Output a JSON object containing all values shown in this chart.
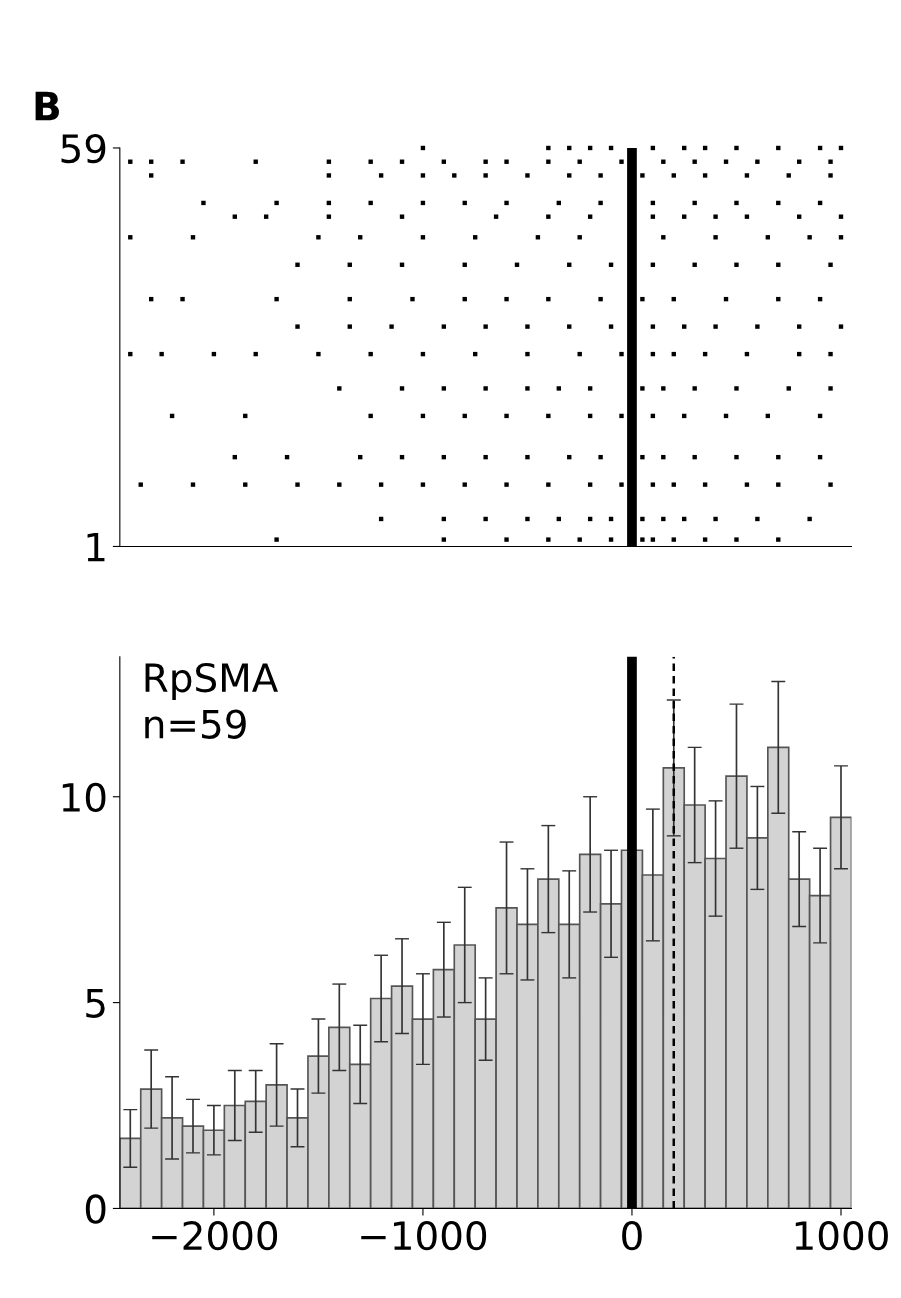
{
  "chart_data": [
    {
      "type": "scatter",
      "title": "B",
      "color": "#000000",
      "marker": "square",
      "xlim": [
        -2450,
        1050
      ],
      "ylim": [
        1,
        59
      ],
      "yticks": [
        1,
        59
      ],
      "tick_labels": "y",
      "ref_lines": [
        {
          "axis": "x",
          "value": 0,
          "color": "#000000",
          "line_style": "solid"
        }
      ],
      "x": [
        -1000,
        -400,
        -300,
        -200,
        -100,
        100,
        250,
        350,
        500,
        700,
        900,
        1000,
        -2400,
        -2300,
        -2150,
        -1800,
        -1450,
        -1250,
        -1100,
        -900,
        -700,
        -600,
        -400,
        -250,
        -50,
        150,
        300,
        450,
        600,
        800,
        950,
        -2300,
        -1450,
        -1200,
        -1000,
        -850,
        -700,
        -500,
        -300,
        -150,
        50,
        200,
        350,
        550,
        750,
        950,
        -2050,
        -1700,
        -1450,
        -1250,
        -1000,
        -800,
        -600,
        -350,
        -150,
        100,
        300,
        500,
        700,
        900,
        -1900,
        -1750,
        -1450,
        -1100,
        -650,
        -400,
        -200,
        100,
        250,
        400,
        550,
        800,
        1000,
        -2400,
        -2100,
        -1500,
        -1300,
        -1000,
        -750,
        -450,
        -250,
        150,
        400,
        650,
        850,
        1000,
        -1600,
        -1350,
        -1100,
        -800,
        -550,
        -300,
        -100,
        100,
        300,
        500,
        700,
        950,
        -2300,
        -2150,
        -1700,
        -1350,
        -1050,
        -800,
        -600,
        -400,
        -150,
        50,
        200,
        450,
        700,
        900,
        -1600,
        -1350,
        -1150,
        -900,
        -700,
        -500,
        -300,
        -100,
        100,
        250,
        400,
        600,
        800,
        1000,
        -2400,
        -2250,
        -2000,
        -1800,
        -1500,
        -1250,
        -1000,
        -750,
        -500,
        -250,
        -50,
        100,
        200,
        350,
        550,
        800,
        950,
        -1400,
        -1100,
        -900,
        -700,
        -500,
        -350,
        -200,
        50,
        150,
        300,
        500,
        750,
        950,
        -2200,
        -1850,
        -1250,
        -1000,
        -800,
        -600,
        -400,
        -200,
        -50,
        100,
        250,
        450,
        650,
        900,
        -1900,
        -1650,
        -1300,
        -1100,
        -900,
        -700,
        -500,
        -300,
        -150,
        50,
        150,
        300,
        500,
        700,
        900,
        -2350,
        -2100,
        -1850,
        -1600,
        -1400,
        -1200,
        -1000,
        -800,
        -600,
        -400,
        -200,
        -50,
        100,
        200,
        350,
        550,
        700,
        950,
        -1200,
        -900,
        -700,
        -500,
        -350,
        -200,
        -100,
        50,
        150,
        250,
        400,
        600,
        850,
        -1700,
        -900,
        -600,
        -400,
        -250,
        -100,
        50,
        100,
        200,
        350,
        500,
        700
      ],
      "values": [
        59,
        59,
        59,
        59,
        59,
        59,
        59,
        59,
        59,
        59,
        59,
        59,
        57,
        57,
        57,
        57,
        57,
        57,
        57,
        57,
        57,
        57,
        57,
        57,
        57,
        57,
        57,
        57,
        57,
        57,
        57,
        55,
        55,
        55,
        55,
        55,
        55,
        55,
        55,
        55,
        55,
        55,
        55,
        55,
        55,
        55,
        51,
        51,
        51,
        51,
        51,
        51,
        51,
        51,
        51,
        51,
        51,
        51,
        51,
        51,
        49,
        49,
        49,
        49,
        49,
        49,
        49,
        49,
        49,
        49,
        49,
        49,
        49,
        46,
        46,
        46,
        46,
        46,
        46,
        46,
        46,
        46,
        46,
        46,
        46,
        46,
        42,
        42,
        42,
        42,
        42,
        42,
        42,
        42,
        42,
        42,
        42,
        42,
        37,
        37,
        37,
        37,
        37,
        37,
        37,
        37,
        37,
        37,
        37,
        37,
        37,
        37,
        33,
        33,
        33,
        33,
        33,
        33,
        33,
        33,
        33,
        33,
        33,
        33,
        33,
        33,
        29,
        29,
        29,
        29,
        29,
        29,
        29,
        29,
        29,
        29,
        29,
        29,
        29,
        29,
        29,
        29,
        29,
        24,
        24,
        24,
        24,
        24,
        24,
        24,
        24,
        24,
        24,
        24,
        24,
        24,
        20,
        20,
        20,
        20,
        20,
        20,
        20,
        20,
        20,
        20,
        20,
        20,
        20,
        20,
        14,
        14,
        14,
        14,
        14,
        14,
        14,
        14,
        14,
        14,
        14,
        14,
        14,
        14,
        14,
        10,
        10,
        10,
        10,
        10,
        10,
        10,
        10,
        10,
        10,
        10,
        10,
        10,
        10,
        10,
        10,
        10,
        10,
        5,
        5,
        5,
        5,
        5,
        5,
        5,
        5,
        5,
        5,
        5,
        5,
        5,
        2,
        2,
        2,
        2,
        2,
        2,
        2,
        2,
        2,
        2,
        2,
        2
      ]
    },
    {
      "type": "bar",
      "color": "#d3d3d3",
      "xlim": [
        -2450,
        1050
      ],
      "ylim": [
        0,
        13.4
      ],
      "yticks": [
        0,
        5,
        10
      ],
      "xticks": [
        {
          "value": -2000,
          "label": "−2000"
        },
        {
          "value": -1000,
          "label": "−1000"
        },
        0,
        1000
      ],
      "annotations": [
        "RpSMA\nn=59"
      ],
      "ref_lines": [
        {
          "axis": "x",
          "value": 0,
          "color": "#000000",
          "line_style": "solid"
        },
        {
          "axis": "x",
          "value": 200,
          "color": "#000000",
          "line_style": "dashed"
        }
      ],
      "x": [
        -2400,
        -2300,
        -2200,
        -2100,
        -2000,
        -1900,
        -1800,
        -1700,
        -1600,
        -1500,
        -1400,
        -1300,
        -1200,
        -1100,
        -1000,
        -900,
        -800,
        -700,
        -600,
        -500,
        -400,
        -300,
        -200,
        -100,
        0,
        100,
        200,
        300,
        400,
        500,
        600,
        700,
        800,
        900,
        1000
      ],
      "values": [
        1.7,
        2.9,
        2.2,
        2.0,
        1.9,
        2.5,
        2.6,
        3.0,
        2.2,
        3.7,
        4.4,
        3.5,
        5.1,
        5.4,
        4.6,
        5.8,
        6.4,
        4.6,
        7.3,
        6.9,
        8.0,
        6.9,
        8.6,
        7.4,
        8.7,
        8.1,
        10.7,
        9.8,
        8.5,
        10.5,
        9.0,
        11.2,
        8.0,
        7.6,
        9.5
      ],
      "errors": [
        0.7,
        0.95,
        1.0,
        0.65,
        0.6,
        0.85,
        0.75,
        1.0,
        0.7,
        0.9,
        1.05,
        0.95,
        1.05,
        1.15,
        1.1,
        1.15,
        1.4,
        1.0,
        1.6,
        1.35,
        1.3,
        1.3,
        1.4,
        1.3,
        null,
        1.6,
        1.65,
        1.4,
        1.4,
        1.75,
        1.25,
        1.6,
        1.15,
        1.15,
        1.25
      ]
    }
  ]
}
